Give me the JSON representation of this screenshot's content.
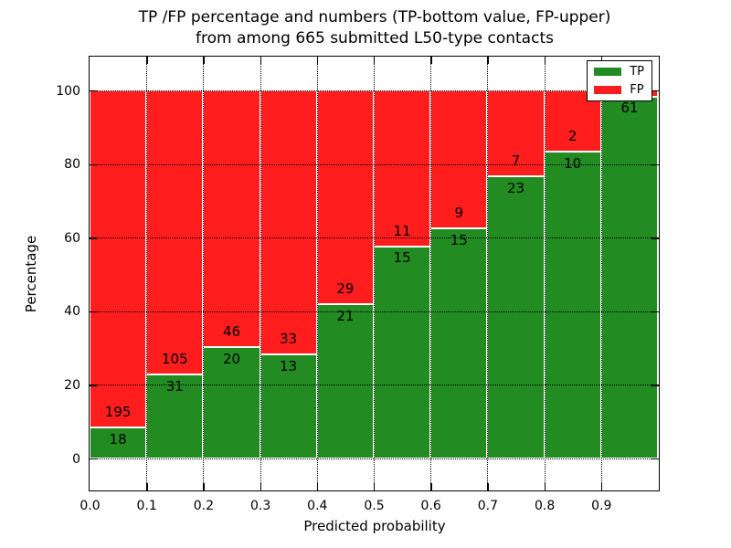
{
  "figure": {
    "title_line1": "TP /FP percentage and numbers (TP-bottom value, FP-upper)",
    "title_line2": "from among 665 submitted L50-type contacts"
  },
  "chart_data": {
    "type": "bar",
    "subtype": "stacked-percentage-histogram",
    "title": "TP /FP percentage and numbers (TP-bottom value, FP-upper) from among 665 submitted L50-type contacts",
    "xlabel": "Predicted probability",
    "ylabel": "Percentage",
    "total_contacts": 665,
    "xlim": [
      0.0,
      1.0
    ],
    "ylim": [
      -9,
      109
    ],
    "bin_width": 0.1,
    "grid": true,
    "x_tick_labels": [
      "0.0",
      "0.1",
      "0.2",
      "0.3",
      "0.4",
      "0.5",
      "0.6",
      "0.7",
      "0.8",
      "0.9"
    ],
    "y_ticks": [
      0,
      20,
      40,
      60,
      80,
      100
    ],
    "categories": [
      "0.0-0.1",
      "0.1-0.2",
      "0.2-0.3",
      "0.3-0.4",
      "0.4-0.5",
      "0.5-0.6",
      "0.6-0.7",
      "0.7-0.8",
      "0.8-0.9",
      "0.9-1.0"
    ],
    "series": [
      {
        "name": "TP",
        "color": "#228b22",
        "values": [
          18,
          31,
          20,
          13,
          21,
          15,
          15,
          23,
          10,
          61
        ]
      },
      {
        "name": "FP",
        "color": "#ff1d1d",
        "values": [
          195,
          105,
          46,
          33,
          29,
          11,
          9,
          7,
          2,
          1
        ]
      }
    ],
    "bins": [
      {
        "x0": 0.0,
        "x1": 0.1,
        "tp": 18,
        "fp": 195,
        "tp_pct": 8.5
      },
      {
        "x0": 0.1,
        "x1": 0.2,
        "tp": 31,
        "fp": 105,
        "tp_pct": 22.8
      },
      {
        "x0": 0.2,
        "x1": 0.3,
        "tp": 20,
        "fp": 46,
        "tp_pct": 30.3
      },
      {
        "x0": 0.3,
        "x1": 0.4,
        "tp": 13,
        "fp": 33,
        "tp_pct": 28.3
      },
      {
        "x0": 0.4,
        "x1": 0.5,
        "tp": 21,
        "fp": 29,
        "tp_pct": 42.0
      },
      {
        "x0": 0.5,
        "x1": 0.6,
        "tp": 15,
        "fp": 11,
        "tp_pct": 57.7
      },
      {
        "x0": 0.6,
        "x1": 0.7,
        "tp": 15,
        "fp": 9,
        "tp_pct": 62.5
      },
      {
        "x0": 0.7,
        "x1": 0.8,
        "tp": 23,
        "fp": 7,
        "tp_pct": 76.7
      },
      {
        "x0": 0.8,
        "x1": 0.9,
        "tp": 10,
        "fp": 2,
        "tp_pct": 83.3
      },
      {
        "x0": 0.9,
        "x1": 1.0,
        "tp": 61,
        "fp": 1,
        "tp_pct": 98.4
      }
    ],
    "legend": {
      "position": "upper right",
      "entries": [
        {
          "label": "TP",
          "color": "#228b22"
        },
        {
          "label": "FP",
          "color": "#ff1d1d"
        }
      ]
    },
    "colors": {
      "tp": "#228b22",
      "fp": "#ff1d1d",
      "bar_edge": "#ffffff",
      "grid": "#000000"
    }
  }
}
